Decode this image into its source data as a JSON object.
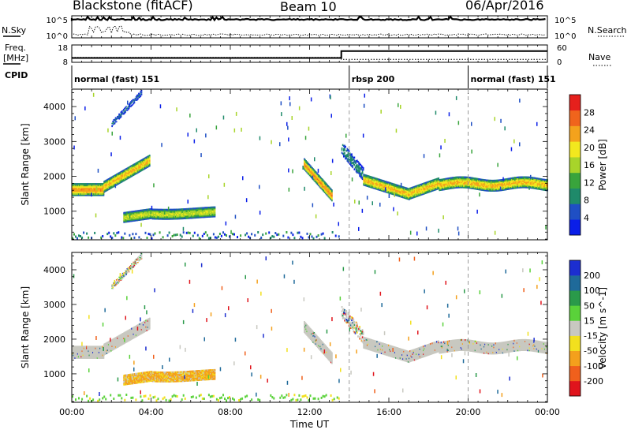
{
  "header": {
    "station": "Blackstone (fitACF)",
    "beam": "Beam 10",
    "date": "06/Apr/2016"
  },
  "labels": {
    "nsky": "N.Sky",
    "nsearch": "N.Search",
    "freq_line1": "Freq.",
    "freq_line2": "[MHz]",
    "nave": "Nave",
    "cpid": "CPID"
  },
  "chart_data": [
    {
      "type": "line",
      "panel": "noise",
      "series": [
        {
          "name": "N.Sky",
          "style": "solid",
          "level": "10^5 (saturated, top of scale)"
        },
        {
          "name": "N.Search",
          "style": "dotted",
          "level": "near 10^0 with spikes to ~10^2 around 01:00-03:00"
        }
      ],
      "ylabels_left": [
        "10^5",
        "10^0"
      ],
      "ylabels_right": [
        "10^5",
        "10^0"
      ]
    },
    {
      "type": "line",
      "panel": "frequency_nave",
      "series": [
        {
          "name": "Freq.",
          "unit": "MHz",
          "style": "solid",
          "x": [
            0,
            13.6,
            13.6,
            24
          ],
          "y": [
            10.5,
            10.5,
            14.5,
            14.5
          ]
        },
        {
          "name": "Nave",
          "style": "dotted",
          "x": [
            0,
            13.6,
            13.6,
            24
          ],
          "y": [
            17,
            17,
            10,
            10
          ]
        }
      ],
      "ylim_left": [
        8,
        18
      ],
      "yticks_left": [
        "18",
        "8"
      ],
      "ylim_right": [
        0,
        60
      ],
      "yticks_right": [
        "60",
        "0"
      ]
    },
    {
      "type": "table",
      "panel": "cpid",
      "segments": [
        {
          "label": "normal (fast) 151",
          "start": 0,
          "end": 14
        },
        {
          "label": "rbsp 200",
          "start": 14,
          "end": 20
        },
        {
          "label": "normal (fast) 151",
          "start": 20,
          "end": 24
        }
      ]
    },
    {
      "type": "heatmap",
      "panel": "power",
      "ylabel": "Slant Range [km]",
      "yticks": [
        1000,
        2000,
        3000,
        4000
      ],
      "ylim": [
        180,
        4500
      ],
      "xlim": [
        0,
        24
      ],
      "colorbar_label": "Power [dB]",
      "colorbar_ticks": [
        4,
        8,
        12,
        16,
        20,
        24,
        28
      ],
      "colorbar_range": [
        0,
        32
      ],
      "colors": [
        "#0a1ee8",
        "#1f4fc4",
        "#1f8a6a",
        "#39a43c",
        "#a8d42a",
        "#f2e81e",
        "#f4a21c",
        "#f0641c",
        "#e6201c"
      ],
      "echo_bands": [
        {
          "t0": 0.0,
          "t1": 1.6,
          "range_km": 1620,
          "width_km": 380,
          "power_db": 22
        },
        {
          "t0": 1.6,
          "t1": 3.9,
          "range_km": "1700-2400",
          "width_km": 320,
          "power_db": 18
        },
        {
          "t0": 2.0,
          "t1": 3.5,
          "range_km": "3500-4400",
          "width_km": 150,
          "power_db": 6
        },
        {
          "t0": 2.6,
          "t1": 7.2,
          "range_km": "800-1100",
          "width_km": 300,
          "power_db": 16
        },
        {
          "t0": 11.7,
          "t1": 13.1,
          "range_km": "2400-1350",
          "width_km": 320,
          "power_db": 22
        },
        {
          "t0": 13.6,
          "t1": 14.7,
          "range_km": "2900-2000",
          "width_km": 350,
          "power_db": 8
        },
        {
          "t0": 14.7,
          "t1": 24.0,
          "range_km": "1450-1850",
          "width_km": 330,
          "power_db": 22
        }
      ]
    },
    {
      "type": "heatmap",
      "panel": "velocity",
      "ylabel": "Slant Range [km]",
      "yticks": [
        1000,
        2000,
        3000,
        4000
      ],
      "ylim": [
        180,
        4500
      ],
      "xlabel": "Time UT",
      "xticks": [
        "00:00",
        "04:00",
        "08:00",
        "12:00",
        "16:00",
        "20:00",
        "00:00"
      ],
      "xlim": [
        0,
        24
      ],
      "colorbar_label": "Velocity [m s^-1]",
      "colorbar_ticks": [
        200,
        100,
        50,
        15,
        -15,
        -50,
        -100,
        -200
      ],
      "colors": [
        "#1c2ed0",
        "#1f6a9a",
        "#2a9a4a",
        "#5ad23a",
        "#c8c8c0",
        "#f2e01e",
        "#f4a01c",
        "#f0601c",
        "#e0141c"
      ],
      "echo_bands": [
        {
          "t0": 0.0,
          "t1": 3.9,
          "range_km": "1600-2300",
          "velocity_ms": "0 (ground scatter)"
        },
        {
          "t0": 2.6,
          "t1": 7.2,
          "range_km": "800-1100",
          "velocity_ms": "-50 to -100"
        },
        {
          "t0": 11.7,
          "t1": 13.1,
          "range_km": "2400-1350",
          "velocity_ms": "0 (ground scatter)"
        },
        {
          "t0": 14.7,
          "t1": 24.0,
          "range_km": "1450-1850",
          "velocity_ms": "0 (ground scatter)"
        }
      ]
    }
  ],
  "panel_labels": {
    "power_ylabel": "Slant Range [km]",
    "velocity_ylabel": "Slant Range [km]",
    "xlabel": "Time UT",
    "power_cbar": "Power [dB]",
    "velocity_cbar": "Velocity [m s^-1]"
  }
}
